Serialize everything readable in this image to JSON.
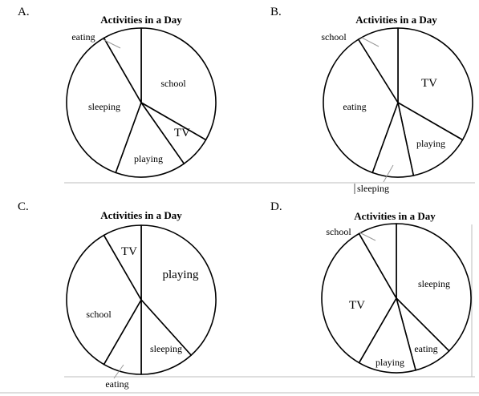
{
  "chart_data": [
    {
      "option": "A.",
      "type": "pie",
      "title": "Activities in a Day",
      "slices": [
        {
          "label": "school",
          "start_deg": 0,
          "end_deg": 120
        },
        {
          "label": "TV",
          "start_deg": 120,
          "end_deg": 145
        },
        {
          "label": "playing",
          "start_deg": 145,
          "end_deg": 200
        },
        {
          "label": "sleeping",
          "start_deg": 200,
          "end_deg": 330
        },
        {
          "label": "eating",
          "start_deg": 330,
          "end_deg": 360
        }
      ]
    },
    {
      "option": "B.",
      "type": "pie",
      "title": "Activities in a Day",
      "slices": [
        {
          "label": "TV",
          "start_deg": 0,
          "end_deg": 120
        },
        {
          "label": "playing",
          "start_deg": 120,
          "end_deg": 168
        },
        {
          "label": "sleeping",
          "start_deg": 168,
          "end_deg": 200
        },
        {
          "label": "eating",
          "start_deg": 200,
          "end_deg": 328
        },
        {
          "label": "school",
          "start_deg": 328,
          "end_deg": 360
        }
      ]
    },
    {
      "option": "C.",
      "type": "pie",
      "title": "Activities in a Day",
      "slices": [
        {
          "label": "playing",
          "start_deg": 0,
          "end_deg": 138
        },
        {
          "label": "sleeping",
          "start_deg": 138,
          "end_deg": 180
        },
        {
          "label": "eating",
          "start_deg": 180,
          "end_deg": 210
        },
        {
          "label": "school",
          "start_deg": 210,
          "end_deg": 330
        },
        {
          "label": "TV",
          "start_deg": 330,
          "end_deg": 360
        }
      ]
    },
    {
      "option": "D.",
      "type": "pie",
      "title": "Activities in a Day",
      "slices": [
        {
          "label": "sleeping",
          "start_deg": 0,
          "end_deg": 135
        },
        {
          "label": "eating",
          "start_deg": 135,
          "end_deg": 165
        },
        {
          "label": "playing",
          "start_deg": 165,
          "end_deg": 210
        },
        {
          "label": "TV",
          "start_deg": 210,
          "end_deg": 330
        },
        {
          "label": "school",
          "start_deg": 330,
          "end_deg": 360
        }
      ]
    }
  ]
}
